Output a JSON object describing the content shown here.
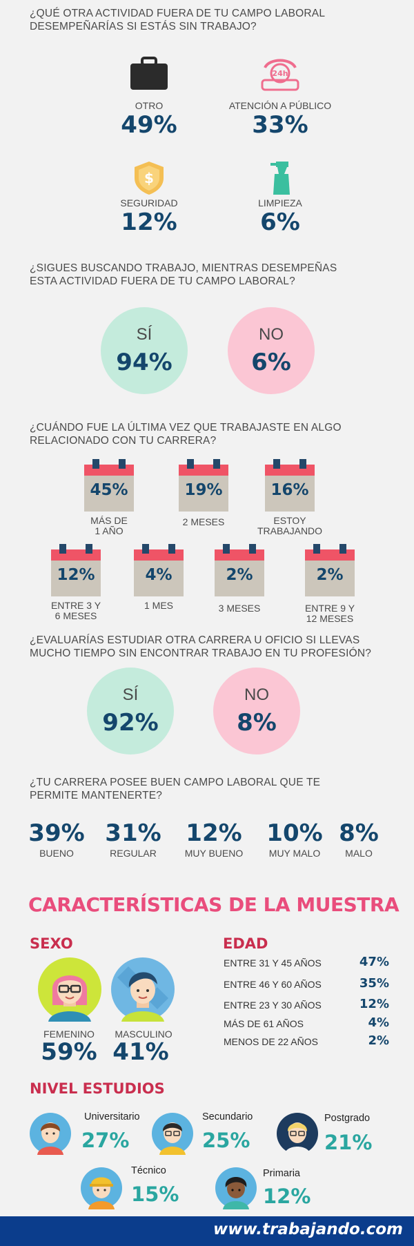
{
  "q1": {
    "title": "¿Qué otra actividad fuera de tu campo laboral desempeñarías si estás sin trabajo?",
    "items": [
      {
        "label": "OTRO",
        "value": "49%",
        "icon": "briefcase-icon"
      },
      {
        "label": "ATENCIÓN A PÚBLICO",
        "value": "33%",
        "icon": "24h-phone-icon",
        "badge": "24h"
      },
      {
        "label": "SEGURIDAD",
        "value": "12%",
        "icon": "shield-dollar-icon",
        "badge": "$"
      },
      {
        "label": "LIMPIEZA",
        "value": "6%",
        "icon": "spray-bottle-icon"
      }
    ]
  },
  "q2": {
    "title": "¿Sigues buscando trabajo, mientras desempeñas esta actividad fuera de tu campo laboral?",
    "yes": {
      "label": "SÍ",
      "value": "94%"
    },
    "no": {
      "label": "NO",
      "value": "6%"
    }
  },
  "q3": {
    "title": "¿Cuándo fue la última vez que trabajaste en algo relacionado con tu carrera?",
    "items": [
      {
        "value": "45%",
        "label1": "MÁS DE",
        "label2": "1 AÑO"
      },
      {
        "value": "19%",
        "label1": "2 MESES",
        "label2": ""
      },
      {
        "value": "16%",
        "label1": "ESTOY",
        "label2": "TRABAJANDO"
      },
      {
        "value": "12%",
        "label1": "ENTRE 3 Y",
        "label2": "6 MESES"
      },
      {
        "value": "4%",
        "label1": "1 MES",
        "label2": ""
      },
      {
        "value": "2%",
        "label1": "3 MESES",
        "label2": ""
      },
      {
        "value": "2%",
        "label1": "ENTRE 9 Y",
        "label2": "12 MESES"
      }
    ]
  },
  "q4": {
    "title": "¿Evaluarías estudiar otra carrera u oficio si llevas mucho tiempo sin encontrar trabajo en tu profesión?",
    "yes": {
      "label": "SÍ",
      "value": "92%"
    },
    "no": {
      "label": "NO",
      "value": "8%"
    }
  },
  "q5": {
    "title": "¿Tu carrera posee buen campo laboral que te permite mantenerte?",
    "items": [
      {
        "value": "39%",
        "label": "BUENO"
      },
      {
        "value": "31%",
        "label": "REGULAR"
      },
      {
        "value": "12%",
        "label": "MUY BUENO"
      },
      {
        "value": "10%",
        "label": "MUY MALO"
      },
      {
        "value": "8%",
        "label": "MALO"
      }
    ]
  },
  "sample": {
    "title": "Características de la muestra",
    "sexo": {
      "title": "Sexo",
      "female": {
        "label": "FEMENINO",
        "value": "59%"
      },
      "male": {
        "label": "MASCULINO",
        "value": "41%"
      }
    },
    "edad": {
      "title": "Edad",
      "rows": [
        {
          "label": "ENTRE 31 Y 45 AÑOS",
          "value": "47%"
        },
        {
          "label": "ENTRE 46 Y 60 AÑOS",
          "value": "35%"
        },
        {
          "label": "ENTRE 23 Y 30 AÑOS",
          "value": "12%"
        },
        {
          "label": "MÁS DE 61 AÑOS",
          "value": "4%"
        },
        {
          "label": "MENOS DE 22 AÑOS",
          "value": "2%"
        }
      ]
    },
    "estudios": {
      "title": "Nivel estudios",
      "items": [
        {
          "label": "Universitario",
          "value": "27%"
        },
        {
          "label": "Secundario",
          "value": "25%"
        },
        {
          "label": "Postgrado",
          "value": "21%"
        },
        {
          "label": "Técnico",
          "value": "15%"
        },
        {
          "label": "Primaria",
          "value": "12%"
        }
      ]
    }
  },
  "footer": {
    "brand": "www.trabajando.com"
  },
  "colors": {
    "navy": "#14466c",
    "mint": "#c4ebdc",
    "pink": "#fbc6d4",
    "accent_pink": "#e94d7c",
    "calendar_red": "#ef5466",
    "teal": "#2aa6a0",
    "footer": "#0b3d8c"
  }
}
